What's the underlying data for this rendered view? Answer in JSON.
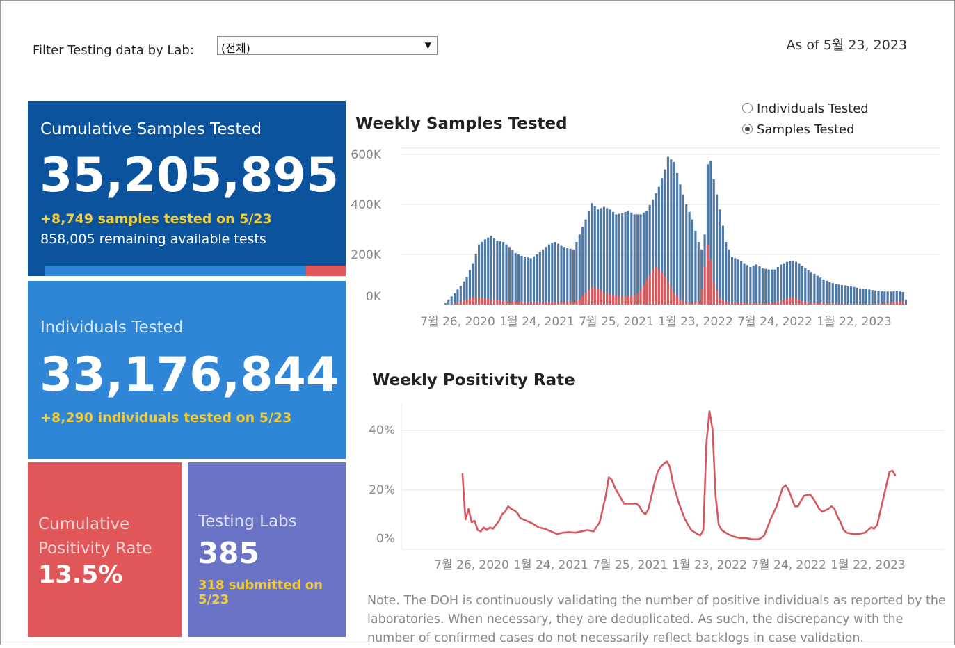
{
  "filter": {
    "label": "Filter Testing data by Lab:",
    "selected": "(전체)"
  },
  "as_of": "As of 5월 23, 2023",
  "tiles": {
    "cumulative_samples": {
      "title": "Cumulative Samples Tested",
      "value": "35,205,895",
      "sub1": "+8,749 samples tested on 5/23",
      "sub2": "858,005 remaining available tests",
      "remaining_fraction": 0.1245
    },
    "individuals": {
      "title": "Individuals Tested",
      "value": "33,176,844",
      "sub": "+8,290  individuals  tested on 5/23"
    },
    "positivity": {
      "title_line1": "Cumulative",
      "title_line2": "Positivity Rate",
      "value": "13.5%"
    },
    "labs": {
      "title": "Testing Labs",
      "value": "385",
      "sub": "318 submitted on 5/23"
    }
  },
  "toggle": {
    "options": [
      "Individuals Tested",
      "Samples Tested"
    ],
    "selected": "Samples Tested"
  },
  "note": "Note. The DOH is continuously validating the number of positive individuals as reported by the laboratories. When necessary, they are deduplicated. As such, the discrepancy with the number of confirmed cases do not necessarily reflect backlogs in case validation.",
  "colors": {
    "total": "#4e79a7",
    "positive": "#e15759",
    "line": "#d4595e"
  },
  "chart_data": [
    {
      "type": "bar",
      "title": "Weekly Samples Tested",
      "y_ticks": [
        "600K",
        "400K",
        "200K",
        "0K"
      ],
      "y_tick_values": [
        600000,
        400000,
        200000,
        0
      ],
      "x_ticks": [
        "7월 26, 2020",
        "1월 24, 2021",
        "7월 25, 2021",
        "1월 23, 2022",
        "7월 24, 2022",
        "1월 22, 2023"
      ],
      "x_tick_weeks": [
        0,
        26,
        52,
        78,
        104,
        130
      ],
      "ylim": [
        0,
        600000
      ],
      "weeks_before_first_tick": 4,
      "total_anchors": [
        [
          -4,
          5000
        ],
        [
          -3,
          20000
        ],
        [
          -1,
          45000
        ],
        [
          1,
          75000
        ],
        [
          3,
          110000
        ],
        [
          5,
          165000
        ],
        [
          7,
          240000
        ],
        [
          9,
          260000
        ],
        [
          11,
          275000
        ],
        [
          13,
          255000
        ],
        [
          15,
          250000
        ],
        [
          17,
          230000
        ],
        [
          19,
          205000
        ],
        [
          21,
          195000
        ],
        [
          24,
          185000
        ],
        [
          26,
          200000
        ],
        [
          28,
          220000
        ],
        [
          30,
          240000
        ],
        [
          32,
          250000
        ],
        [
          34,
          235000
        ],
        [
          36,
          225000
        ],
        [
          38,
          220000
        ],
        [
          40,
          280000
        ],
        [
          42,
          340000
        ],
        [
          44,
          405000
        ],
        [
          46,
          380000
        ],
        [
          48,
          390000
        ],
        [
          50,
          380000
        ],
        [
          52,
          360000
        ],
        [
          54,
          365000
        ],
        [
          56,
          375000
        ],
        [
          58,
          360000
        ],
        [
          60,
          360000
        ],
        [
          62,
          375000
        ],
        [
          64,
          420000
        ],
        [
          66,
          470000
        ],
        [
          68,
          540000
        ],
        [
          69,
          590000
        ],
        [
          71,
          570000
        ],
        [
          73,
          480000
        ],
        [
          75,
          400000
        ],
        [
          77,
          340000
        ],
        [
          79,
          250000
        ],
        [
          80,
          220000
        ],
        [
          81,
          280000
        ],
        [
          82,
          560000
        ],
        [
          83,
          575000
        ],
        [
          84,
          500000
        ],
        [
          86,
          380000
        ],
        [
          88,
          250000
        ],
        [
          90,
          190000
        ],
        [
          92,
          180000
        ],
        [
          94,
          165000
        ],
        [
          96,
          150000
        ],
        [
          98,
          160000
        ],
        [
          100,
          145000
        ],
        [
          102,
          140000
        ],
        [
          104,
          140000
        ],
        [
          106,
          160000
        ],
        [
          108,
          170000
        ],
        [
          110,
          175000
        ],
        [
          112,
          165000
        ],
        [
          114,
          145000
        ],
        [
          116,
          130000
        ],
        [
          118,
          115000
        ],
        [
          120,
          100000
        ],
        [
          122,
          90000
        ],
        [
          124,
          82000
        ],
        [
          126,
          78000
        ],
        [
          128,
          75000
        ],
        [
          130,
          70000
        ],
        [
          132,
          64000
        ],
        [
          134,
          62000
        ],
        [
          136,
          58000
        ],
        [
          138,
          55000
        ],
        [
          140,
          52000
        ],
        [
          142,
          52000
        ],
        [
          144,
          55000
        ],
        [
          146,
          50000
        ],
        [
          147,
          20000
        ]
      ],
      "positive_anchors": [
        [
          -4,
          0
        ],
        [
          -1,
          5000
        ],
        [
          1,
          12000
        ],
        [
          3,
          20000
        ],
        [
          5,
          30000
        ],
        [
          7,
          30000
        ],
        [
          9,
          24000
        ],
        [
          12,
          18000
        ],
        [
          16,
          13000
        ],
        [
          22,
          9000
        ],
        [
          28,
          9000
        ],
        [
          34,
          10000
        ],
        [
          38,
          12000
        ],
        [
          40,
          20000
        ],
        [
          42,
          48000
        ],
        [
          44,
          70000
        ],
        [
          46,
          63000
        ],
        [
          48,
          48000
        ],
        [
          50,
          40000
        ],
        [
          52,
          35000
        ],
        [
          54,
          32000
        ],
        [
          56,
          33000
        ],
        [
          58,
          38000
        ],
        [
          60,
          55000
        ],
        [
          62,
          100000
        ],
        [
          64,
          140000
        ],
        [
          65,
          150000
        ],
        [
          67,
          130000
        ],
        [
          69,
          90000
        ],
        [
          71,
          45000
        ],
        [
          73,
          20000
        ],
        [
          75,
          10000
        ],
        [
          77,
          5000
        ],
        [
          79,
          15000
        ],
        [
          80,
          60000
        ],
        [
          81,
          150000
        ],
        [
          82,
          240000
        ],
        [
          83,
          180000
        ],
        [
          84,
          90000
        ],
        [
          86,
          25000
        ],
        [
          88,
          10000
        ],
        [
          92,
          6000
        ],
        [
          100,
          5000
        ],
        [
          104,
          6000
        ],
        [
          106,
          15000
        ],
        [
          108,
          25000
        ],
        [
          110,
          30000
        ],
        [
          112,
          18000
        ],
        [
          114,
          10000
        ],
        [
          118,
          6000
        ],
        [
          124,
          4000
        ],
        [
          130,
          3000
        ],
        [
          136,
          3000
        ],
        [
          140,
          5000
        ],
        [
          142,
          8000
        ],
        [
          144,
          11000
        ],
        [
          146,
          12000
        ],
        [
          147,
          3000
        ]
      ]
    },
    {
      "type": "line",
      "title": "Weekly Positivity Rate",
      "y_ticks": [
        "40%",
        "20%",
        "0%"
      ],
      "y_tick_values": [
        40,
        20,
        0
      ],
      "x_ticks": [
        "7월 26, 2020",
        "1월 24, 2021",
        "7월 25, 2021",
        "1월 23, 2022",
        "7월 24, 2022",
        "1월 22, 2023"
      ],
      "x_tick_weeks": [
        0,
        26,
        52,
        78,
        104,
        130
      ],
      "ylim": [
        0,
        48
      ],
      "weeks_before_first_tick": 4,
      "anchors": [
        [
          -3,
          23.5
        ],
        [
          -2,
          6
        ],
        [
          -1,
          10
        ],
        [
          0,
          5
        ],
        [
          1,
          5.5
        ],
        [
          2,
          2
        ],
        [
          3,
          1.5
        ],
        [
          4,
          3
        ],
        [
          5,
          2
        ],
        [
          6,
          3
        ],
        [
          7,
          2.5
        ],
        [
          8,
          4
        ],
        [
          9,
          5.5
        ],
        [
          10,
          8
        ],
        [
          11,
          9
        ],
        [
          12,
          11
        ],
        [
          13,
          10
        ],
        [
          14,
          9.5
        ],
        [
          15,
          8.5
        ],
        [
          16,
          6.5
        ],
        [
          18,
          5.5
        ],
        [
          20,
          4.5
        ],
        [
          22,
          3
        ],
        [
          24,
          2.5
        ],
        [
          26,
          1.5
        ],
        [
          28,
          0.5
        ],
        [
          30,
          1
        ],
        [
          32,
          1.2
        ],
        [
          34,
          1
        ],
        [
          36,
          1.5
        ],
        [
          38,
          2
        ],
        [
          40,
          1.5
        ],
        [
          42,
          5
        ],
        [
          44,
          15
        ],
        [
          45,
          22
        ],
        [
          46,
          21
        ],
        [
          47,
          18
        ],
        [
          48,
          16
        ],
        [
          49,
          14
        ],
        [
          50,
          12
        ],
        [
          52,
          12
        ],
        [
          54,
          12
        ],
        [
          55,
          11
        ],
        [
          56,
          9
        ],
        [
          57,
          8
        ],
        [
          58,
          10
        ],
        [
          59,
          15
        ],
        [
          60,
          20
        ],
        [
          61,
          24
        ],
        [
          62,
          26
        ],
        [
          63,
          27
        ],
        [
          64,
          28
        ],
        [
          65,
          26
        ],
        [
          66,
          20
        ],
        [
          67,
          16
        ],
        [
          68,
          12
        ],
        [
          70,
          6
        ],
        [
          72,
          2
        ],
        [
          74,
          0.5
        ],
        [
          75,
          0
        ],
        [
          76,
          2
        ],
        [
          77,
          35
        ],
        [
          78,
          47
        ],
        [
          79,
          40
        ],
        [
          80,
          15
        ],
        [
          81,
          4
        ],
        [
          82,
          2
        ],
        [
          84,
          0.5
        ],
        [
          86,
          -0.5
        ],
        [
          88,
          -1
        ],
        [
          90,
          -1
        ],
        [
          92,
          -1.5
        ],
        [
          94,
          -1.5
        ],
        [
          95,
          -1
        ],
        [
          96,
          0
        ],
        [
          98,
          6
        ],
        [
          100,
          11
        ],
        [
          102,
          18
        ],
        [
          103,
          19
        ],
        [
          104,
          17
        ],
        [
          105,
          14
        ],
        [
          106,
          11
        ],
        [
          107,
          11
        ],
        [
          108,
          13
        ],
        [
          109,
          15
        ],
        [
          111,
          15.5
        ],
        [
          112,
          14
        ],
        [
          113,
          12
        ],
        [
          114,
          10
        ],
        [
          115,
          9
        ],
        [
          117,
          10
        ],
        [
          118,
          11
        ],
        [
          119,
          10
        ],
        [
          120,
          7
        ],
        [
          121,
          5
        ],
        [
          122,
          2
        ],
        [
          123,
          1
        ],
        [
          125,
          0.5
        ],
        [
          127,
          0.5
        ],
        [
          129,
          1
        ],
        [
          131,
          3
        ],
        [
          132,
          2.5
        ],
        [
          133,
          4
        ],
        [
          134,
          9
        ],
        [
          135,
          14
        ],
        [
          136,
          19
        ],
        [
          137,
          24
        ],
        [
          138,
          24.5
        ],
        [
          139,
          22.5
        ]
      ]
    }
  ]
}
